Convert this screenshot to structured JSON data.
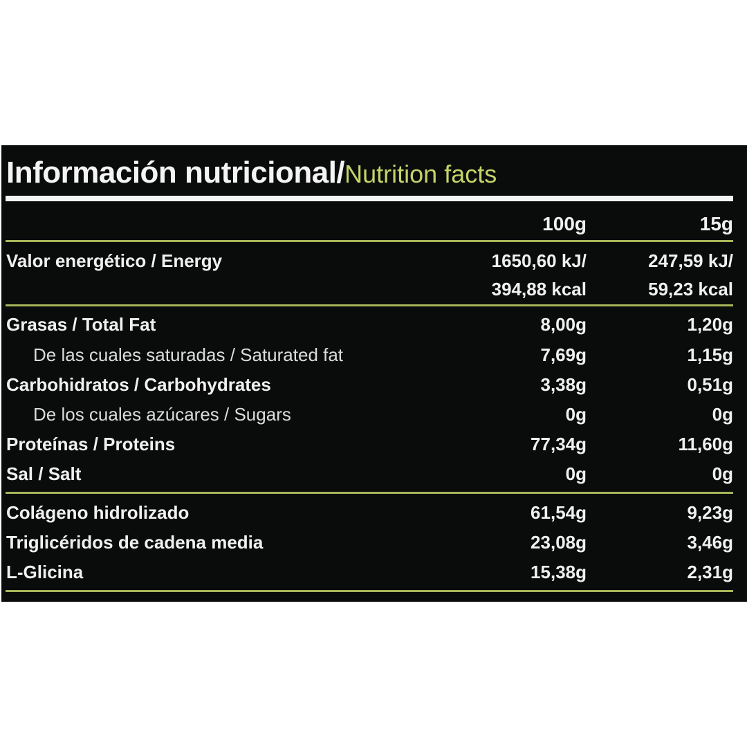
{
  "title": {
    "spanish": "Información nutricional/",
    "english": "Nutrition facts"
  },
  "columns": [
    "100g",
    "15g"
  ],
  "energy": {
    "label": "Valor energético / Energy",
    "col1_line1": "1650,60 kJ/",
    "col1_line2": "394,88 kcal",
    "col2_line1": "247,59 kJ/",
    "col2_line2": "59,23 kcal"
  },
  "rows": [
    {
      "label": "Grasas / Total Fat",
      "v100": "8,00g",
      "v15": "1,20g"
    },
    {
      "label": "De las cuales saturadas / Saturated fat",
      "v100": "7,69g",
      "v15": "1,15g"
    },
    {
      "label": "Carbohidratos / Carbohydrates",
      "v100": "3,38g",
      "v15": "0,51g"
    },
    {
      "label": "De los cuales azúcares / Sugars",
      "v100": "0g",
      "v15": "0g"
    },
    {
      "label": "Proteínas / Proteins",
      "v100": "77,34g",
      "v15": "11,60g"
    },
    {
      "label": "Sal / Salt",
      "v100": "0g",
      "v15": "0g"
    }
  ],
  "extras": [
    {
      "label": "Colágeno hidrolizado",
      "v100": "61,54g",
      "v15": "9,23g"
    },
    {
      "label": "Triglicéridos de cadena media",
      "v100": "23,08g",
      "v15": "3,46g"
    },
    {
      "label": "L-Glicina",
      "v100": "15,38g",
      "v15": "2,31g"
    }
  ],
  "colors": {
    "panel": "#0a0c0b",
    "accent": "#c6d36a",
    "rule": "#a8b55a"
  }
}
